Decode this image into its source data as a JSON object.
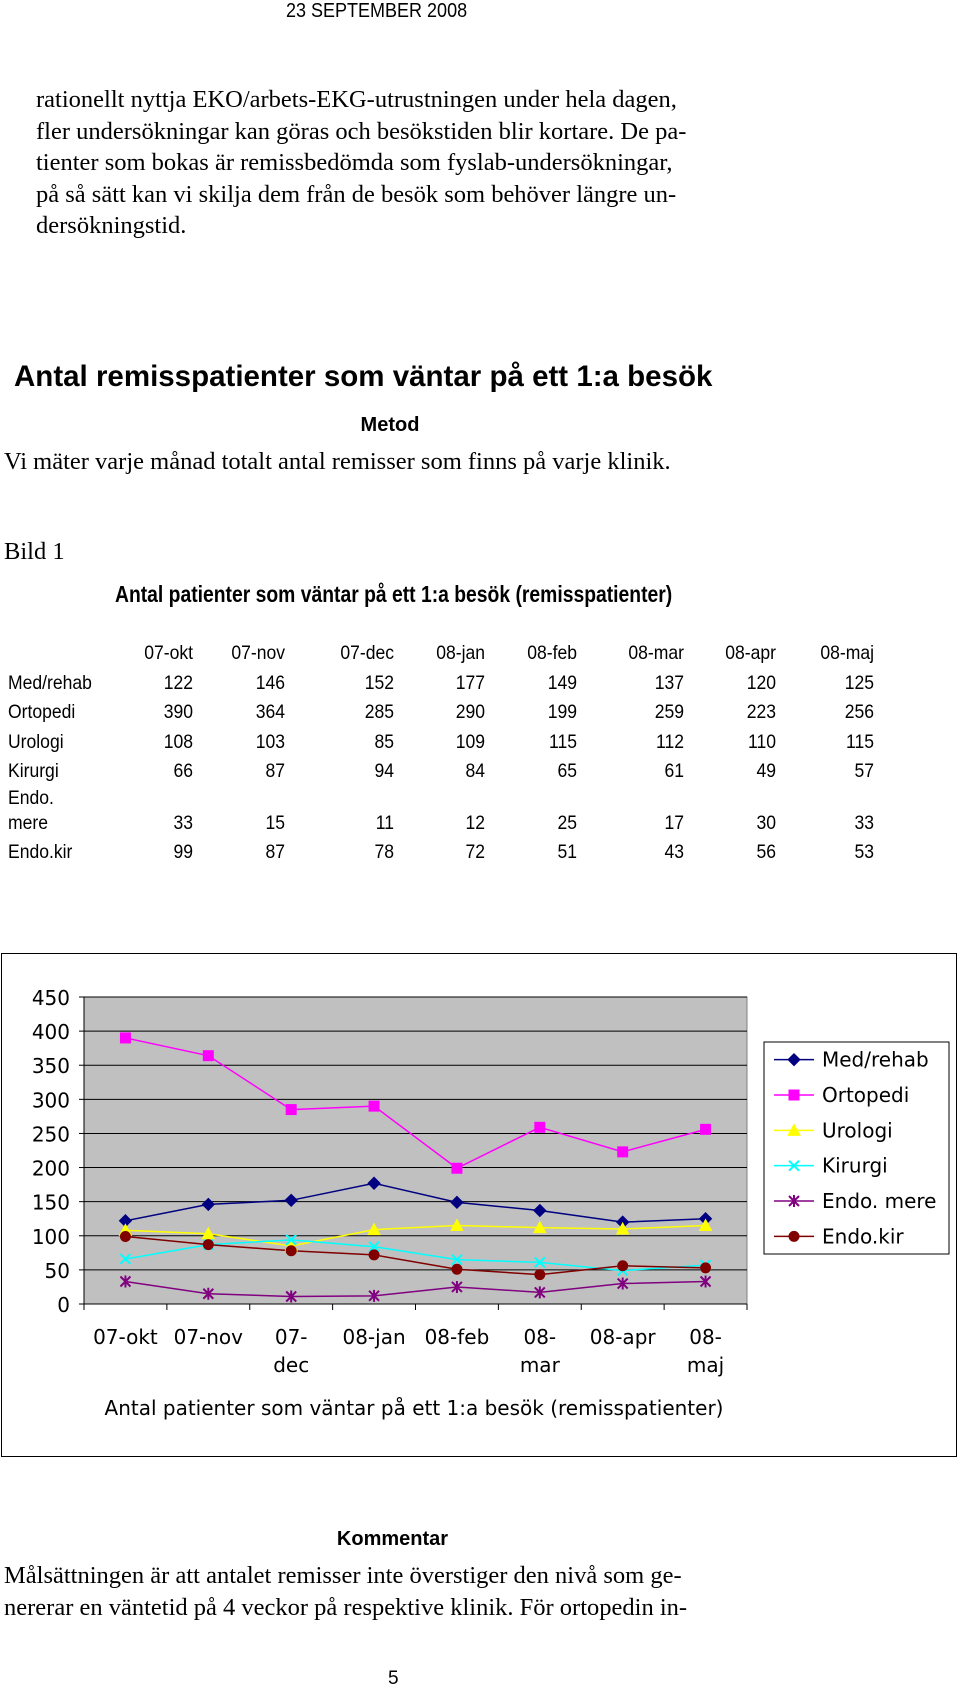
{
  "header": {
    "date": "23 SEPTEMBER 2008"
  },
  "intro_lines": [
    "rationellt nyttja EKO/arbets-EKG-utrustningen under hela dagen,",
    "fler undersökningar kan göras och besökstiden blir kortare. De pa-",
    "tienter som bokas är remissbedömda som fyslab-undersökningar,",
    "på så sätt kan vi skilja dem från de besök som behöver längre un-",
    "dersökningstid."
  ],
  "section": {
    "heading": "Antal remisspatienter som väntar på ett 1:a besök",
    "metod_label": "Metod",
    "metod_text": "Vi mäter varje månad totalt antal remisser som finns på varje klinik."
  },
  "figure": {
    "label": "Bild 1",
    "table_title": "Antal patienter som väntar på ett 1:a besök (remisspatienter)"
  },
  "table": {
    "columns": [
      "07-okt",
      "07-nov",
      "07-dec",
      "08-jan",
      "08-feb",
      "08-mar",
      "08-apr",
      "08-maj"
    ],
    "rows": [
      {
        "label": "Med/rehab",
        "label2": "",
        "values": [
          "122",
          "146",
          "152",
          "177",
          "149",
          "137",
          "120",
          "125"
        ]
      },
      {
        "label": "Ortopedi",
        "label2": "",
        "values": [
          "390",
          "364",
          "285",
          "290",
          "199",
          "259",
          "223",
          "256"
        ]
      },
      {
        "label": "Urologi",
        "label2": "",
        "values": [
          "108",
          "103",
          "85",
          "109",
          "115",
          "112",
          "110",
          "115"
        ]
      },
      {
        "label": "Kirurgi",
        "label2": "",
        "values": [
          "66",
          "87",
          "94",
          "84",
          "65",
          "61",
          "49",
          "57"
        ]
      },
      {
        "label": "Endo.",
        "label2": "mere",
        "values": [
          "33",
          "15",
          "11",
          "12",
          "25",
          "17",
          "30",
          "33"
        ]
      },
      {
        "label": "Endo.kir",
        "label2": "",
        "values": [
          "99",
          "87",
          "78",
          "72",
          "51",
          "43",
          "56",
          "53"
        ]
      }
    ]
  },
  "chart_data": {
    "type": "line",
    "title": "Antal patienter som väntar på ett 1:a besök (remisspatienter)",
    "categories": [
      [
        "07-okt"
      ],
      [
        "07-nov"
      ],
      [
        "07-",
        "dec"
      ],
      [
        "08-jan"
      ],
      [
        "08-feb"
      ],
      [
        "08-",
        "mar"
      ],
      [
        "08-apr"
      ],
      [
        "08-",
        "maj"
      ]
    ],
    "ylim": [
      0,
      450
    ],
    "yticks": [
      0,
      50,
      100,
      150,
      200,
      250,
      300,
      350,
      400,
      450
    ],
    "grid": true,
    "legend_position": "right",
    "plot_background": "#c0c0c0",
    "series": [
      {
        "name": "Med/rehab",
        "color": "#000080",
        "marker": "diamond",
        "values": [
          122,
          146,
          152,
          177,
          149,
          137,
          120,
          125
        ]
      },
      {
        "name": "Ortopedi",
        "color": "#ff00ff",
        "marker": "square",
        "values": [
          390,
          364,
          285,
          290,
          199,
          259,
          223,
          256
        ]
      },
      {
        "name": "Urologi",
        "color": "#ffff00",
        "marker": "triangle",
        "values": [
          108,
          103,
          85,
          109,
          115,
          112,
          110,
          115
        ]
      },
      {
        "name": "Kirurgi",
        "color": "#00ffff",
        "marker": "x",
        "values": [
          66,
          87,
          94,
          84,
          65,
          61,
          49,
          57
        ]
      },
      {
        "name": "Endo. mere",
        "color": "#800080",
        "marker": "star",
        "values": [
          33,
          15,
          11,
          12,
          25,
          17,
          30,
          33
        ]
      },
      {
        "name": "Endo.kir",
        "color": "#800000",
        "marker": "circle",
        "values": [
          99,
          87,
          78,
          72,
          51,
          43,
          56,
          53
        ]
      }
    ]
  },
  "comment": {
    "heading": "Kommentar",
    "lines": [
      "Målsättningen är att antalet remisser inte överstiger den nivå som ge-",
      "nererar en väntetid på 4 veckor på respektive klinik. För ortopedin in-"
    ]
  },
  "page_number": "5"
}
